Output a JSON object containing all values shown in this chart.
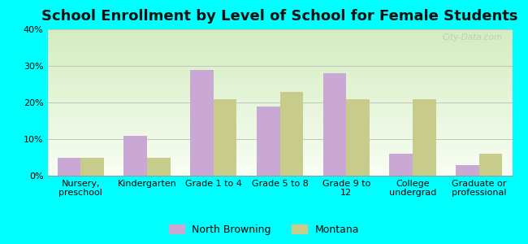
{
  "title": "School Enrollment by Level of School for Female Students",
  "categories": [
    "Nursery,\npreschool",
    "Kindergarten",
    "Grade 1 to 4",
    "Grade 5 to 8",
    "Grade 9 to\n12",
    "College\nundergrad",
    "Graduate or\nprofessional"
  ],
  "north_browning": [
    5,
    11,
    29,
    19,
    28,
    6,
    3
  ],
  "montana": [
    5,
    5,
    21,
    23,
    21,
    21,
    6
  ],
  "bar_color_nb": "#c9a8d4",
  "bar_color_mt": "#c8cc8a",
  "background_color": "#00ffff",
  "ylim": [
    0,
    40
  ],
  "yticks": [
    0,
    10,
    20,
    30,
    40
  ],
  "ytick_labels": [
    "0%",
    "10%",
    "20%",
    "30%",
    "40%"
  ],
  "legend_nb": "North Browning",
  "legend_mt": "Montana",
  "title_fontsize": 13,
  "tick_fontsize": 8
}
